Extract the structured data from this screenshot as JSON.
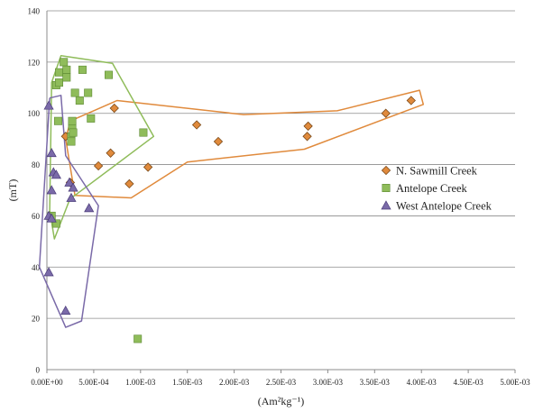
{
  "chart_data": {
    "type": "scatter",
    "title": "",
    "xlabel": "(Am²kg⁻¹)",
    "ylabel": "(mT)",
    "xlim": [
      0,
      0.005
    ],
    "ylim": [
      0,
      140
    ],
    "xticks": [
      "0.00E+00",
      "5.00E-04",
      "1.00E-03",
      "1.50E-03",
      "2.00E-03",
      "2.50E-03",
      "3.00E-03",
      "3.50E-03",
      "4.00E-03",
      "4.50E-03",
      "5.00E-03"
    ],
    "yticks": [
      "0",
      "20",
      "40",
      "60",
      "80",
      "100",
      "120",
      "140"
    ],
    "grid": "horizontal",
    "legend_position": "right",
    "series": [
      {
        "name": "N. Sawmill Creek",
        "marker": "diamond",
        "color": "#e08a3c",
        "stroke": "#7a4a1a",
        "points": [
          [
            0.0002,
            91
          ],
          [
            0.00025,
            73
          ],
          [
            0.00055,
            79.5
          ],
          [
            0.00068,
            84.5
          ],
          [
            0.00072,
            102
          ],
          [
            0.00088,
            72.5
          ],
          [
            0.00108,
            79
          ],
          [
            0.0016,
            95.5
          ],
          [
            0.00183,
            89
          ],
          [
            0.00278,
            91
          ],
          [
            0.00279,
            95
          ],
          [
            0.00362,
            100
          ],
          [
            0.00389,
            105
          ]
        ],
        "outline": [
          [
            0.0002,
            90
          ],
          [
            0.00025,
            97
          ],
          [
            0.00075,
            105
          ],
          [
            0.0021,
            99.5
          ],
          [
            0.0031,
            101
          ],
          [
            0.00398,
            109
          ],
          [
            0.00402,
            103.5
          ],
          [
            0.00275,
            86
          ],
          [
            0.0015,
            81
          ],
          [
            0.0009,
            67
          ],
          [
            0.0003,
            68
          ],
          [
            0.0002,
            90
          ]
        ]
      },
      {
        "name": "Antelope Creek",
        "marker": "square",
        "color": "#8fbc5a",
        "stroke": "#5e8a34",
        "points": [
          [
            5e-05,
            60
          ],
          [
            0.0001,
            57
          ],
          [
            0.0001,
            111
          ],
          [
            0.00012,
            97
          ],
          [
            0.00013,
            112
          ],
          [
            0.00013,
            116
          ],
          [
            0.00018,
            120
          ],
          [
            0.00021,
            117
          ],
          [
            0.00021,
            114
          ],
          [
            0.00026,
            91
          ],
          [
            0.00026,
            89
          ],
          [
            0.00027,
            95
          ],
          [
            0.00027,
            97
          ],
          [
            0.00028,
            92.5
          ],
          [
            0.0003,
            108
          ],
          [
            0.00035,
            105
          ],
          [
            0.00038,
            117
          ],
          [
            0.00044,
            108
          ],
          [
            0.00047,
            98
          ],
          [
            0.00066,
            115
          ],
          [
            0.00103,
            92.5
          ],
          [
            0.00097,
            12
          ]
        ],
        "outline": [
          [
            3e-05,
            62
          ],
          [
            5e-05,
            112
          ],
          [
            0.00015,
            122.5
          ],
          [
            0.0007,
            119.5
          ],
          [
            0.00114,
            91
          ],
          [
            0.0003,
            68
          ],
          [
            0.00025,
            67
          ],
          [
            8e-05,
            51
          ],
          [
            3e-05,
            62
          ]
        ]
      },
      {
        "name": "West Antelope Creek",
        "marker": "triangle",
        "color": "#7a6aa8",
        "stroke": "#4b3c7a",
        "points": [
          [
            2e-05,
            103
          ],
          [
            2e-05,
            60
          ],
          [
            5e-05,
            59
          ],
          [
            2e-05,
            38
          ],
          [
            5e-05,
            70
          ],
          [
            5e-05,
            84.5
          ],
          [
            7e-05,
            77
          ],
          [
            0.0001,
            76
          ],
          [
            0.0002,
            23
          ],
          [
            0.00024,
            73
          ],
          [
            0.00026,
            67
          ],
          [
            0.00028,
            71
          ],
          [
            0.00045,
            63
          ]
        ],
        "outline": [
          [
            3e-05,
            106
          ],
          [
            0.00015,
            107
          ],
          [
            0.0002,
            83.5
          ],
          [
            0.00055,
            64
          ],
          [
            0.00037,
            19
          ],
          [
            0.0002,
            16.5
          ],
          [
            -8e-05,
            40
          ],
          [
            3e-05,
            106
          ]
        ]
      }
    ]
  }
}
